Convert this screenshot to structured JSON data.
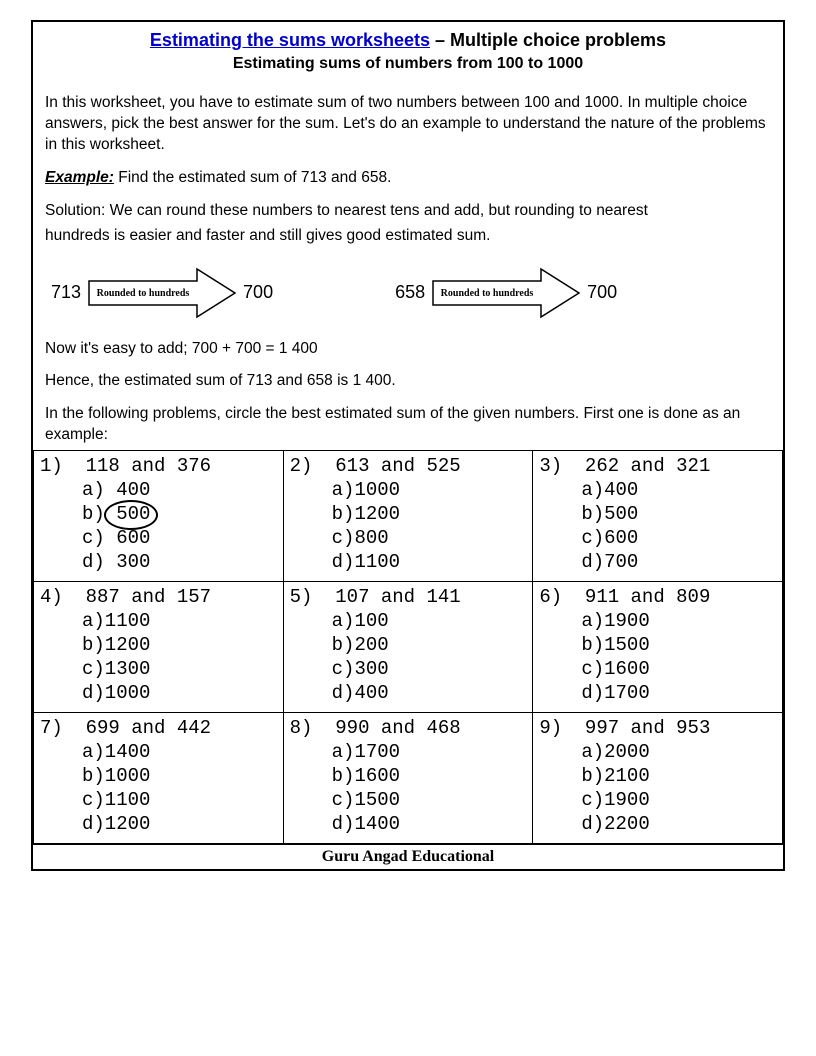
{
  "header": {
    "title_link": "Estimating the sums worksheets",
    "title_rest": " – Multiple choice problems",
    "subtitle": "Estimating sums of numbers from 100 to 1000"
  },
  "intro": {
    "p1": "In this worksheet, you have to estimate sum of two numbers between 100 and 1000. In multiple choice answers, pick the best answer for the sum. Let's do an example to understand the nature of the problems in this worksheet.",
    "example_label": "Example:",
    "example_text": " Find the estimated sum of 713 and 658.",
    "solution1": "Solution: We can round these numbers to nearest tens and add, but rounding to nearest",
    "solution2": "hundreds is easier and faster and still gives good estimated sum."
  },
  "arrows": {
    "left_in": "713",
    "label": "Rounded to hundreds",
    "left_out": "700",
    "right_in": "658",
    "right_out": "700"
  },
  "post": {
    "line1": "Now it's easy to add; 700 + 700 = 1 400",
    "line2": "Hence, the estimated sum of 713 and 658 is 1 400.",
    "line3": "In the following problems, circle the best estimated sum of the given numbers. First one is done as an example:"
  },
  "problems": [
    {
      "n": "1)",
      "q": "118 and 376",
      "opts": [
        {
          "l": "a)",
          "v": " 400"
        },
        {
          "l": "b)",
          "v": " 500",
          "circled": true
        },
        {
          "l": "c)",
          "v": " 600"
        },
        {
          "l": "d)",
          "v": " 300"
        }
      ]
    },
    {
      "n": "2)",
      "q": "613 and 525",
      "opts": [
        {
          "l": "a)",
          "v": "1000"
        },
        {
          "l": "b)",
          "v": "1200"
        },
        {
          "l": "c)",
          "v": "800"
        },
        {
          "l": "d)",
          "v": "1100"
        }
      ]
    },
    {
      "n": "3)",
      "q": "262 and 321",
      "opts": [
        {
          "l": "a)",
          "v": "400"
        },
        {
          "l": "b)",
          "v": "500"
        },
        {
          "l": "c)",
          "v": "600"
        },
        {
          "l": "d)",
          "v": "700"
        }
      ]
    },
    {
      "n": "4)",
      "q": "887 and 157",
      "opts": [
        {
          "l": "a)",
          "v": "1100"
        },
        {
          "l": "b)",
          "v": "1200"
        },
        {
          "l": "c)",
          "v": "1300"
        },
        {
          "l": "d)",
          "v": "1000"
        }
      ]
    },
    {
      "n": "5)",
      "q": "107 and 141",
      "opts": [
        {
          "l": "a)",
          "v": "100"
        },
        {
          "l": "b)",
          "v": "200"
        },
        {
          "l": "c)",
          "v": "300"
        },
        {
          "l": "d)",
          "v": "400"
        }
      ]
    },
    {
      "n": "6)",
      "q": "911 and 809",
      "opts": [
        {
          "l": "a)",
          "v": "1900"
        },
        {
          "l": "b)",
          "v": "1500"
        },
        {
          "l": "c)",
          "v": "1600"
        },
        {
          "l": "d)",
          "v": "1700"
        }
      ]
    },
    {
      "n": "7)",
      "q": "699 and 442",
      "opts": [
        {
          "l": "a)",
          "v": "1400"
        },
        {
          "l": "b)",
          "v": "1000"
        },
        {
          "l": "c)",
          "v": "1100"
        },
        {
          "l": "d)",
          "v": "1200"
        }
      ]
    },
    {
      "n": "8)",
      "q": "990 and 468",
      "opts": [
        {
          "l": "a)",
          "v": "1700"
        },
        {
          "l": "b)",
          "v": "1600"
        },
        {
          "l": "c)",
          "v": "1500"
        },
        {
          "l": "d)",
          "v": "1400"
        }
      ]
    },
    {
      "n": "9)",
      "q": "997 and 953",
      "opts": [
        {
          "l": "a)",
          "v": "2000"
        },
        {
          "l": "b)",
          "v": "2100"
        },
        {
          "l": "c)",
          "v": "1900"
        },
        {
          "l": "d)",
          "v": "2200"
        }
      ]
    }
  ],
  "footer": "Guru Angad Educational",
  "style": {
    "link_color": "#0000cc",
    "border_color": "#000000",
    "mono_font": "Courier New",
    "body_font": "Arial",
    "cell_fontsize": 19,
    "body_fontsize": 15.5,
    "title_fontsize": 18,
    "subtitle_fontsize": 16
  }
}
